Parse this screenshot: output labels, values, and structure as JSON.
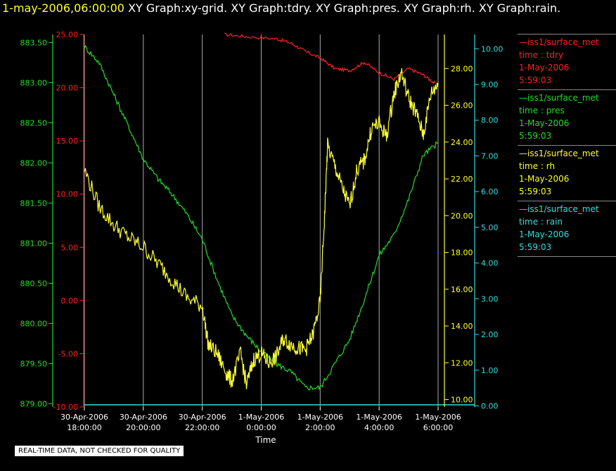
{
  "header": {
    "timestamp": "1-may-2006,06:00:00",
    "graphs": "XY Graph:xy-grid.  XY Graph:tdry.  XY Graph:pres.  XY Graph:rh.  XY Graph:rain."
  },
  "footer": {
    "notice": "REAL-TIME DATA, NOT CHECKED FOR QUALITY"
  },
  "colors": {
    "tdry": "#ff2222",
    "pres": "#22dd22",
    "rh": "#ffff33",
    "rain": "#33dddd",
    "grid": "#aaaaaa"
  },
  "legend": [
    {
      "name": "—iss1/surface_met",
      "field": "time : tdry",
      "date": "1-May-2006",
      "time": "5:59:03",
      "color": "#ff2222"
    },
    {
      "name": "—iss1/surface_met",
      "field": "time : pres",
      "date": "1-May-2006",
      "time": "5:59:03",
      "color": "#22dd22"
    },
    {
      "name": "—iss1/surface_met",
      "field": "time : rh",
      "date": "1-May-2006",
      "time": "5:59:03",
      "color": "#ffff33"
    },
    {
      "name": "—iss1/surface_met",
      "field": "time : rain",
      "date": "1-May-2006",
      "time": "5:59:03",
      "color": "#33dddd"
    }
  ],
  "chart_data": {
    "type": "line",
    "xlabel": "Time",
    "x_ticks": [
      {
        "l1": "30-Apr-2006",
        "l2": "18:00:00"
      },
      {
        "l1": "30-Apr-2006",
        "l2": "20:00:00"
      },
      {
        "l1": "30-Apr-2006",
        "l2": "22:00:00"
      },
      {
        "l1": "1-May-2006",
        "l2": "0:00:00"
      },
      {
        "l1": "1-May-2006",
        "l2": "2:00:00"
      },
      {
        "l1": "1-May-2006",
        "l2": "4:00:00"
      },
      {
        "l1": "1-May-2006",
        "l2": "6:00:00"
      }
    ],
    "x_hour_range": [
      -6,
      6
    ],
    "grid": true,
    "axes": {
      "pres": {
        "ylim": [
          878.96,
          883.6
        ],
        "ticks": [
          "879.00",
          "879.50",
          "880.00",
          "880.50",
          "881.00",
          "881.50",
          "882.00",
          "882.50",
          "883.00",
          "883.50"
        ],
        "tick_values": [
          879,
          879.5,
          880,
          880.5,
          881,
          881.5,
          882,
          882.5,
          883,
          883.5
        ]
      },
      "tdry": {
        "ylim": [
          -10,
          25
        ],
        "ticks": [
          "-10.00",
          "-5.00",
          "0.00",
          "5.00",
          "10.00",
          "15.00",
          "20.00",
          "25.00"
        ],
        "tick_values": [
          -10,
          -5,
          0,
          5,
          10,
          15,
          20,
          25
        ]
      },
      "rh": {
        "ylim": [
          9.6,
          29.85
        ],
        "ticks": [
          "10.00",
          "12.00",
          "14.00",
          "16.00",
          "18.00",
          "20.00",
          "22.00",
          "24.00",
          "26.00",
          "28.00"
        ],
        "tick_values": [
          10,
          12,
          14,
          16,
          18,
          20,
          22,
          24,
          26,
          28
        ]
      },
      "rain": {
        "ylim": [
          -0.03,
          10.4
        ],
        "ticks": [
          "0.00",
          "1.00",
          "2.00",
          "3.00",
          "4.00",
          "5.00",
          "6.00",
          "7.00",
          "8.00",
          "9.00",
          "10.00"
        ],
        "tick_values": [
          0,
          1,
          2,
          3,
          4,
          5,
          6,
          7,
          8,
          9,
          10
        ]
      }
    },
    "series": [
      {
        "key": "tdry",
        "name": "tdry",
        "axis": "tdry",
        "x": [
          -1.25,
          -0.5,
          0.5,
          1.0,
          1.5,
          2.0,
          2.5,
          3.0,
          3.5,
          4.0,
          4.5,
          5.0,
          5.5,
          5.9
        ],
        "y": [
          25.0,
          24.8,
          24.6,
          24.2,
          23.4,
          22.8,
          21.8,
          21.6,
          22.4,
          21.4,
          20.8,
          21.8,
          21.2,
          20.4
        ]
      },
      {
        "key": "pres",
        "name": "pres",
        "axis": "pres",
        "x": [
          -6,
          -5.5,
          -5.0,
          -4.5,
          -4.0,
          -3.5,
          -3.0,
          -2.5,
          -2.0,
          -1.5,
          -1.0,
          -0.5,
          0.0,
          0.5,
          1.0,
          1.5,
          2.0,
          2.5,
          3.0,
          3.5,
          4.0,
          4.5,
          5.0,
          5.5,
          6.0
        ],
        "y": [
          883.45,
          883.25,
          882.85,
          882.45,
          882.05,
          881.8,
          881.6,
          881.35,
          881.05,
          880.55,
          880.1,
          879.85,
          879.65,
          879.5,
          879.4,
          879.2,
          879.2,
          879.5,
          879.8,
          880.3,
          880.85,
          881.1,
          881.55,
          882.1,
          882.25
        ]
      },
      {
        "key": "rh",
        "name": "rh",
        "axis": "rh",
        "x": [
          -6,
          -5.5,
          -5.0,
          -4.5,
          -4.0,
          -3.5,
          -3.0,
          -2.5,
          -2.0,
          -1.8,
          -1.5,
          -1.2,
          -1.0,
          -0.7,
          -0.5,
          -0.25,
          0.0,
          0.25,
          0.5,
          0.75,
          1.0,
          1.25,
          1.5,
          1.75,
          2.0,
          2.15,
          2.25,
          2.5,
          2.75,
          3.0,
          3.25,
          3.5,
          3.75,
          4.0,
          4.25,
          4.5,
          4.75,
          5.0,
          5.25,
          5.5,
          5.75,
          6.0
        ],
        "y": [
          22.5,
          20.5,
          19.5,
          18.8,
          18.3,
          17.4,
          16.5,
          15.5,
          15.1,
          13.0,
          12.5,
          11.5,
          11.0,
          12.5,
          10.8,
          12.2,
          12.5,
          12.0,
          12.3,
          13.3,
          13.0,
          12.8,
          12.7,
          13.5,
          15.3,
          20.0,
          23.8,
          22.7,
          21.5,
          20.5,
          22.5,
          23.0,
          24.8,
          25.0,
          24.3,
          26.6,
          27.8,
          26.4,
          25.6,
          24.4,
          26.6,
          27.2
        ]
      },
      {
        "key": "rain",
        "name": "rain",
        "axis": "rain",
        "x": [
          -6,
          6
        ],
        "y": [
          0,
          0
        ]
      }
    ]
  }
}
